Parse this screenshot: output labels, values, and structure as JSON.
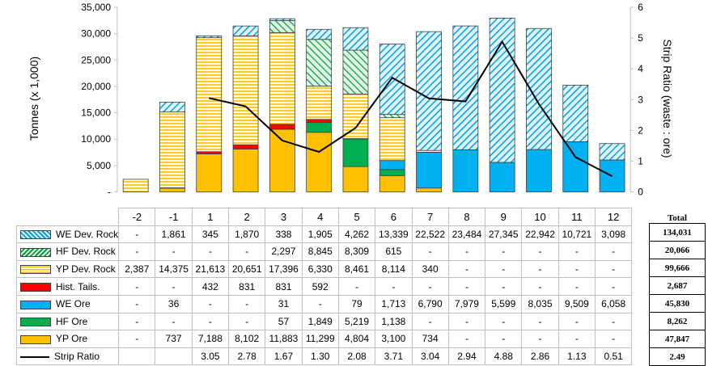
{
  "chart_data": {
    "type": "bar",
    "stacked": true,
    "categories": [
      "-2",
      "-1",
      "1",
      "2",
      "3",
      "4",
      "5",
      "6",
      "7",
      "8",
      "9",
      "10",
      "11",
      "12"
    ],
    "ylabel": "Tonnes (x 1,000)",
    "y2label": "Strip Ratio (waste : ore)",
    "ylim": [
      0,
      35000
    ],
    "y2lim": [
      0,
      6
    ],
    "yticks": [
      "-",
      "5,000",
      "10,000",
      "15,000",
      "20,000",
      "25,000",
      "30,000",
      "35,000"
    ],
    "y2ticks": [
      "0",
      "1",
      "2",
      "3",
      "4",
      "5",
      "6"
    ],
    "grid": false,
    "series": [
      {
        "name": "YP Ore",
        "color": "#ffc000",
        "pattern": "solid",
        "values": [
          null,
          737,
          7188,
          8102,
          11883,
          11299,
          4804,
          3100,
          734,
          null,
          null,
          null,
          null,
          null
        ],
        "labels": [
          "-",
          "737",
          "7,188",
          "8,102",
          "11,883",
          "11,299",
          "4,804",
          "3,100",
          "734",
          "-",
          "-",
          "-",
          "-",
          "-"
        ]
      },
      {
        "name": "HF Ore",
        "color": "#00b050",
        "pattern": "solid",
        "values": [
          null,
          null,
          null,
          null,
          57,
          1849,
          5219,
          1138,
          null,
          null,
          null,
          null,
          null,
          null
        ],
        "labels": [
          "-",
          "-",
          "-",
          "-",
          "57",
          "1,849",
          "5,219",
          "1,138",
          "-",
          "-",
          "-",
          "-",
          "-",
          "-"
        ]
      },
      {
        "name": "WE Ore",
        "color": "#00b0f0",
        "pattern": "solid",
        "values": [
          null,
          36,
          null,
          null,
          31,
          null,
          79,
          1713,
          6790,
          7979,
          5599,
          8035,
          9509,
          6058
        ],
        "labels": [
          "-",
          "36",
          "-",
          "-",
          "31",
          "-",
          "79",
          "1,713",
          "6,790",
          "7,979",
          "5,599",
          "8,035",
          "9,509",
          "6,058"
        ]
      },
      {
        "name": "Hist. Tails.",
        "color": "#ff0000",
        "pattern": "solid",
        "values": [
          null,
          null,
          432,
          831,
          831,
          592,
          null,
          null,
          null,
          null,
          null,
          null,
          null,
          null
        ],
        "labels": [
          "-",
          "-",
          "432",
          "831",
          "831",
          "592",
          "-",
          "-",
          "-",
          "-",
          "-",
          "-",
          "-",
          "-"
        ]
      },
      {
        "name": "YP Dev. Rock",
        "color": "#ffc000",
        "pattern": "horizontal",
        "values": [
          2387,
          14375,
          21613,
          20651,
          17396,
          6330,
          8461,
          8114,
          340,
          null,
          null,
          null,
          null,
          null
        ],
        "labels": [
          "2,387",
          "14,375",
          "21,613",
          "20,651",
          "17,396",
          "6,330",
          "8,461",
          "8,114",
          "340",
          "-",
          "-",
          "-",
          "-",
          "-"
        ]
      },
      {
        "name": "HF Dev. Rock",
        "color": "#00b050",
        "pattern": "diagonal",
        "values": [
          null,
          null,
          null,
          null,
          2297,
          8845,
          8309,
          615,
          null,
          null,
          null,
          null,
          null,
          null
        ],
        "labels": [
          "-",
          "-",
          "-",
          "-",
          "2,297",
          "8,845",
          "8,309",
          "615",
          "-",
          "-",
          "-",
          "-",
          "-",
          "-"
        ]
      },
      {
        "name": "WE Dev. Rock",
        "color": "#00b0f0",
        "pattern": "diagonal",
        "values": [
          null,
          1861,
          345,
          1870,
          338,
          1905,
          4262,
          13339,
          22522,
          23484,
          27345,
          22942,
          10721,
          3098
        ],
        "labels": [
          "-",
          "1,861",
          "345",
          "1,870",
          "338",
          "1,905",
          "4,262",
          "13,339",
          "22,522",
          "23,484",
          "27,345",
          "22,942",
          "10,721",
          "3,098"
        ]
      },
      {
        "name": "Strip Ratio",
        "type": "line",
        "axis": "y2",
        "color": "#000000",
        "values": [
          null,
          null,
          3.05,
          2.78,
          1.67,
          1.3,
          2.08,
          3.71,
          3.04,
          2.94,
          4.88,
          2.86,
          1.13,
          0.51
        ],
        "labels": [
          "",
          "",
          "3.05",
          "2.78",
          "1.67",
          "1.30",
          "2.08",
          "3.71",
          "3.04",
          "2.94",
          "4.88",
          "2.86",
          "1.13",
          "0.51"
        ]
      }
    ],
    "table_order": [
      "WE Dev. Rock",
      "HF Dev. Rock",
      "YP Dev. Rock",
      "Hist. Tails.",
      "WE Ore",
      "HF Ore",
      "YP Ore",
      "Strip Ratio"
    ],
    "totals_header": "Total",
    "totals": [
      "134,031",
      "20,066",
      "99,666",
      "2,687",
      "45,830",
      "8,262",
      "47,847",
      "2.49"
    ]
  }
}
